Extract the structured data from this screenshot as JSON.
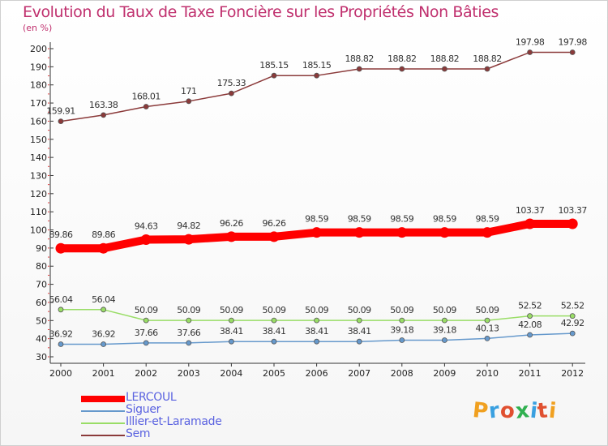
{
  "header": {
    "title": "Evolution du Taux de Taxe Foncière sur les Propriétés Non Bâties",
    "subtitle": "(en %)"
  },
  "logo": {
    "text": "Proxiti"
  },
  "chart_data": {
    "type": "line",
    "title": "Evolution du Taux de Taxe Foncière sur les Propriétés Non Bâties",
    "ylabel": "(en %)",
    "xlabel": "",
    "x": [
      "2000",
      "2001",
      "2002",
      "2003",
      "2004",
      "2005",
      "2006",
      "2007",
      "2008",
      "2009",
      "2010",
      "2011",
      "2012"
    ],
    "ylim": [
      30,
      200
    ],
    "yticks": [
      30,
      40,
      50,
      60,
      70,
      80,
      90,
      100,
      110,
      120,
      130,
      140,
      150,
      160,
      170,
      180,
      190,
      200
    ],
    "grid": false,
    "legend_position": "bottom-left",
    "series": [
      {
        "name": "LERCOUL",
        "color": "#ff0000",
        "values": [
          89.86,
          89.86,
          94.63,
          94.82,
          96.26,
          96.26,
          98.59,
          98.59,
          98.59,
          98.59,
          98.59,
          103.37,
          103.37
        ],
        "labels": [
          "89.86",
          "89.86",
          "94.63",
          "94.82",
          "96.26",
          "96.26",
          "98.59",
          "98.59",
          "98.59",
          "98.59",
          "98.59",
          "103.37",
          "103.37"
        ]
      },
      {
        "name": "Siguer",
        "color": "#6699cc",
        "values": [
          36.92,
          36.92,
          37.66,
          37.66,
          38.41,
          38.41,
          38.41,
          38.41,
          39.18,
          39.18,
          40.13,
          42.08,
          42.92
        ],
        "labels": [
          "36.92",
          "36.92",
          "37.66",
          "37.66",
          "38.41",
          "38.41",
          "38.41",
          "38.41",
          "39.18",
          "39.18",
          "40.13",
          "42.08",
          "42.92"
        ]
      },
      {
        "name": "Illier-et-Laramade",
        "color": "#99dd66",
        "values": [
          56.04,
          56.04,
          50.09,
          50.09,
          50.09,
          50.09,
          50.09,
          50.09,
          50.09,
          50.09,
          50.09,
          52.52,
          52.52
        ],
        "labels": [
          "56.04",
          "56.04",
          "50.09",
          "50.09",
          "50.09",
          "50.09",
          "50.09",
          "50.09",
          "50.09",
          "50.09",
          "50.09",
          "52.52",
          "52.52"
        ]
      },
      {
        "name": "Sem",
        "color": "#8b3a3a",
        "values": [
          159.91,
          163.38,
          168.01,
          171,
          175.33,
          185.15,
          185.15,
          188.82,
          188.82,
          188.82,
          188.82,
          197.98,
          197.98
        ],
        "labels": [
          "159.91",
          "163.38",
          "168.01",
          "171",
          "175.33",
          "185.15",
          "185.15",
          "188.82",
          "188.82",
          "188.82",
          "188.82",
          "197.98",
          "197.98"
        ]
      }
    ]
  }
}
